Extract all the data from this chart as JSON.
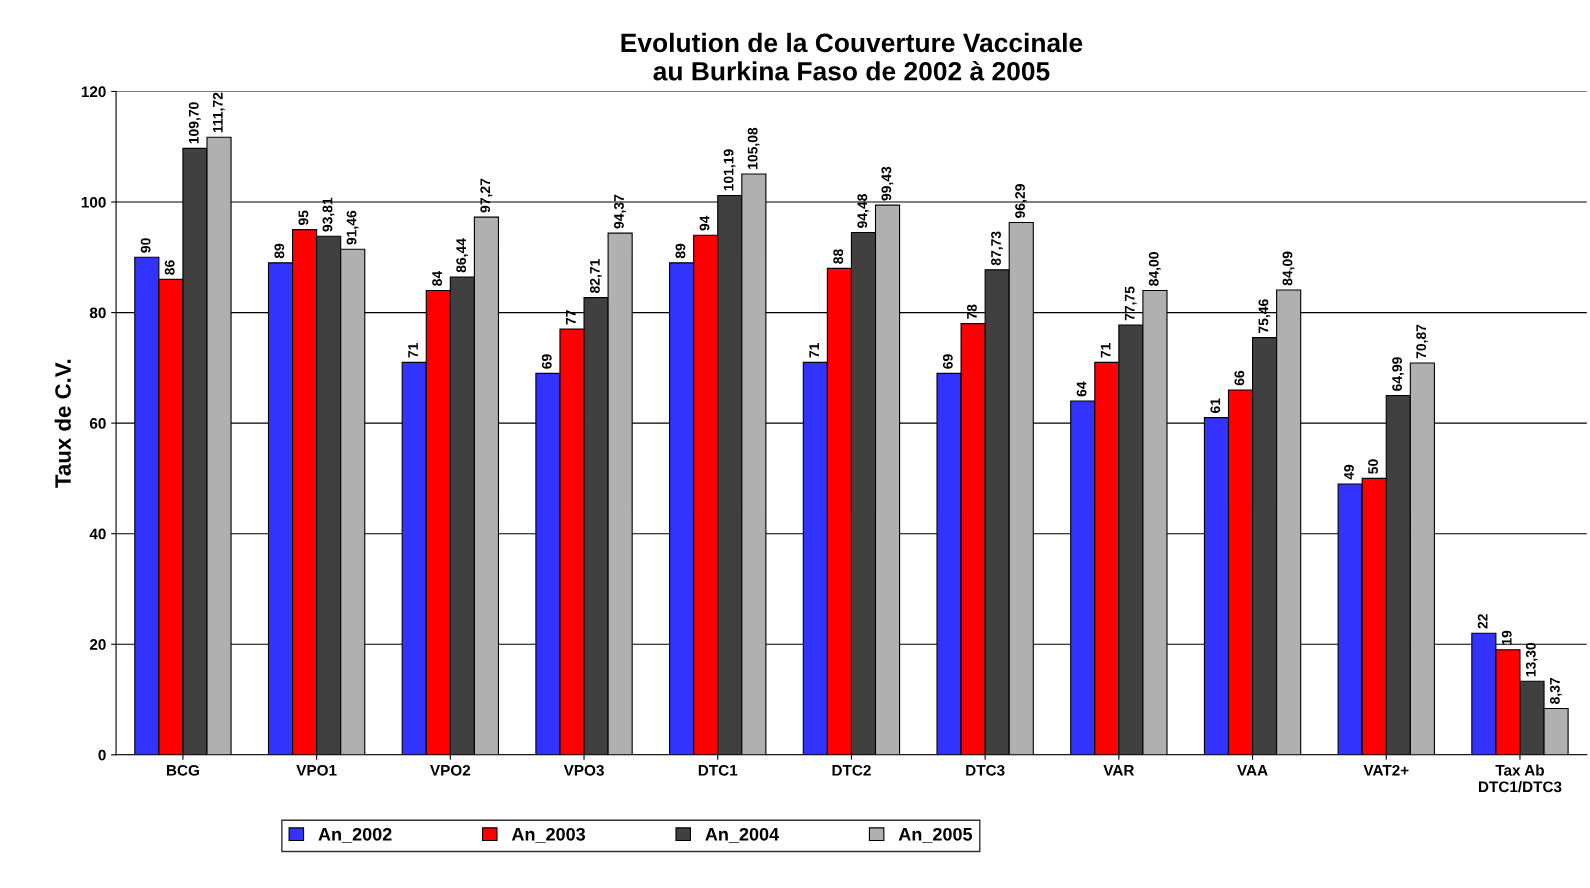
{
  "chart_data": {
    "type": "bar",
    "title": "Evolution de la Couverture Vaccinale\nau Burkina Faso de 2002 à 2005",
    "ylabel": "Taux de C.V.",
    "categories": [
      "BCG",
      "VPO1",
      "VPO2",
      "VPO3",
      "DTC1",
      "DTC2",
      "DTC3",
      "VAR",
      "VAA",
      "VAT2+",
      "Tax Ab\nDTC1/DTC3"
    ],
    "series": [
      {
        "name": "An_2002",
        "color": "#3333ff",
        "values": [
          90,
          89,
          71,
          69,
          89,
          71,
          69,
          64,
          61,
          49,
          22
        ],
        "value_labels": [
          "90",
          "89",
          "71",
          "69",
          "89",
          "71",
          "69",
          "64",
          "61",
          "49",
          "22"
        ]
      },
      {
        "name": "An_2003",
        "color": "#ff0000",
        "values": [
          86,
          95,
          84,
          77,
          94,
          88,
          78,
          71,
          66,
          50,
          19
        ],
        "value_labels": [
          "86",
          "95",
          "84",
          "77",
          "94",
          "88",
          "78",
          "71",
          "66",
          "50",
          "19"
        ]
      },
      {
        "name": "An_2004",
        "color": "#404040",
        "values": [
          109.7,
          93.81,
          86.44,
          82.71,
          101.19,
          94.48,
          87.73,
          77.75,
          75.46,
          64.99,
          13.3
        ],
        "value_labels": [
          "109,70",
          "93,81",
          "86,44",
          "82,71",
          "101,19",
          "94,48",
          "87,73",
          "77,75",
          "75,46",
          "64,99",
          "13,30"
        ]
      },
      {
        "name": "An_2005",
        "color": "#b0b0b0",
        "values": [
          111.72,
          91.46,
          97.27,
          94.37,
          105.08,
          99.43,
          96.29,
          84.0,
          84.09,
          70.87,
          8.37
        ],
        "value_labels": [
          "111,72",
          "91,46",
          "97,27",
          "94,37",
          "105,08",
          "99,43",
          "96,29",
          "84,00",
          "84,09",
          "70,87",
          "8,37"
        ]
      }
    ],
    "ylim": [
      0,
      120
    ],
    "yticks": [
      0,
      20,
      40,
      60,
      80,
      100,
      120
    ],
    "grid": "y",
    "legend": "bottom"
  }
}
